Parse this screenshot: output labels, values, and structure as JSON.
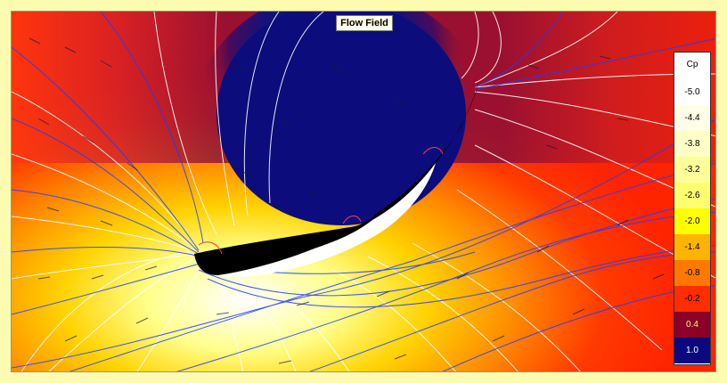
{
  "window": {
    "title": "Flow Field"
  },
  "legend": {
    "label": "Cp",
    "entries": [
      {
        "value": "-5.0",
        "color": "#ffffff",
        "text_color": "#000000"
      },
      {
        "value": "-4.4",
        "color": "#ffffe8",
        "text_color": "#000000"
      },
      {
        "value": "-3.8",
        "color": "#ffffc6",
        "text_color": "#000000"
      },
      {
        "value": "-3.2",
        "color": "#ffff9a",
        "text_color": "#000000"
      },
      {
        "value": "-2.6",
        "color": "#ffff70",
        "text_color": "#000000"
      },
      {
        "value": "-2.0",
        "color": "#ffff00",
        "text_color": "#000000"
      },
      {
        "value": "-1.4",
        "color": "#ffb400",
        "text_color": "#000000"
      },
      {
        "value": "-0.8",
        "color": "#ff7800",
        "text_color": "#000000"
      },
      {
        "value": "-0.2",
        "color": "#ff2d00",
        "text_color": "#000000"
      },
      {
        "value": "0.4",
        "color": "#8b0028",
        "text_color": "#ffff66"
      },
      {
        "value": "1.0",
        "color": "#0a0a7e",
        "text_color": "#ffffff"
      }
    ]
  }
}
